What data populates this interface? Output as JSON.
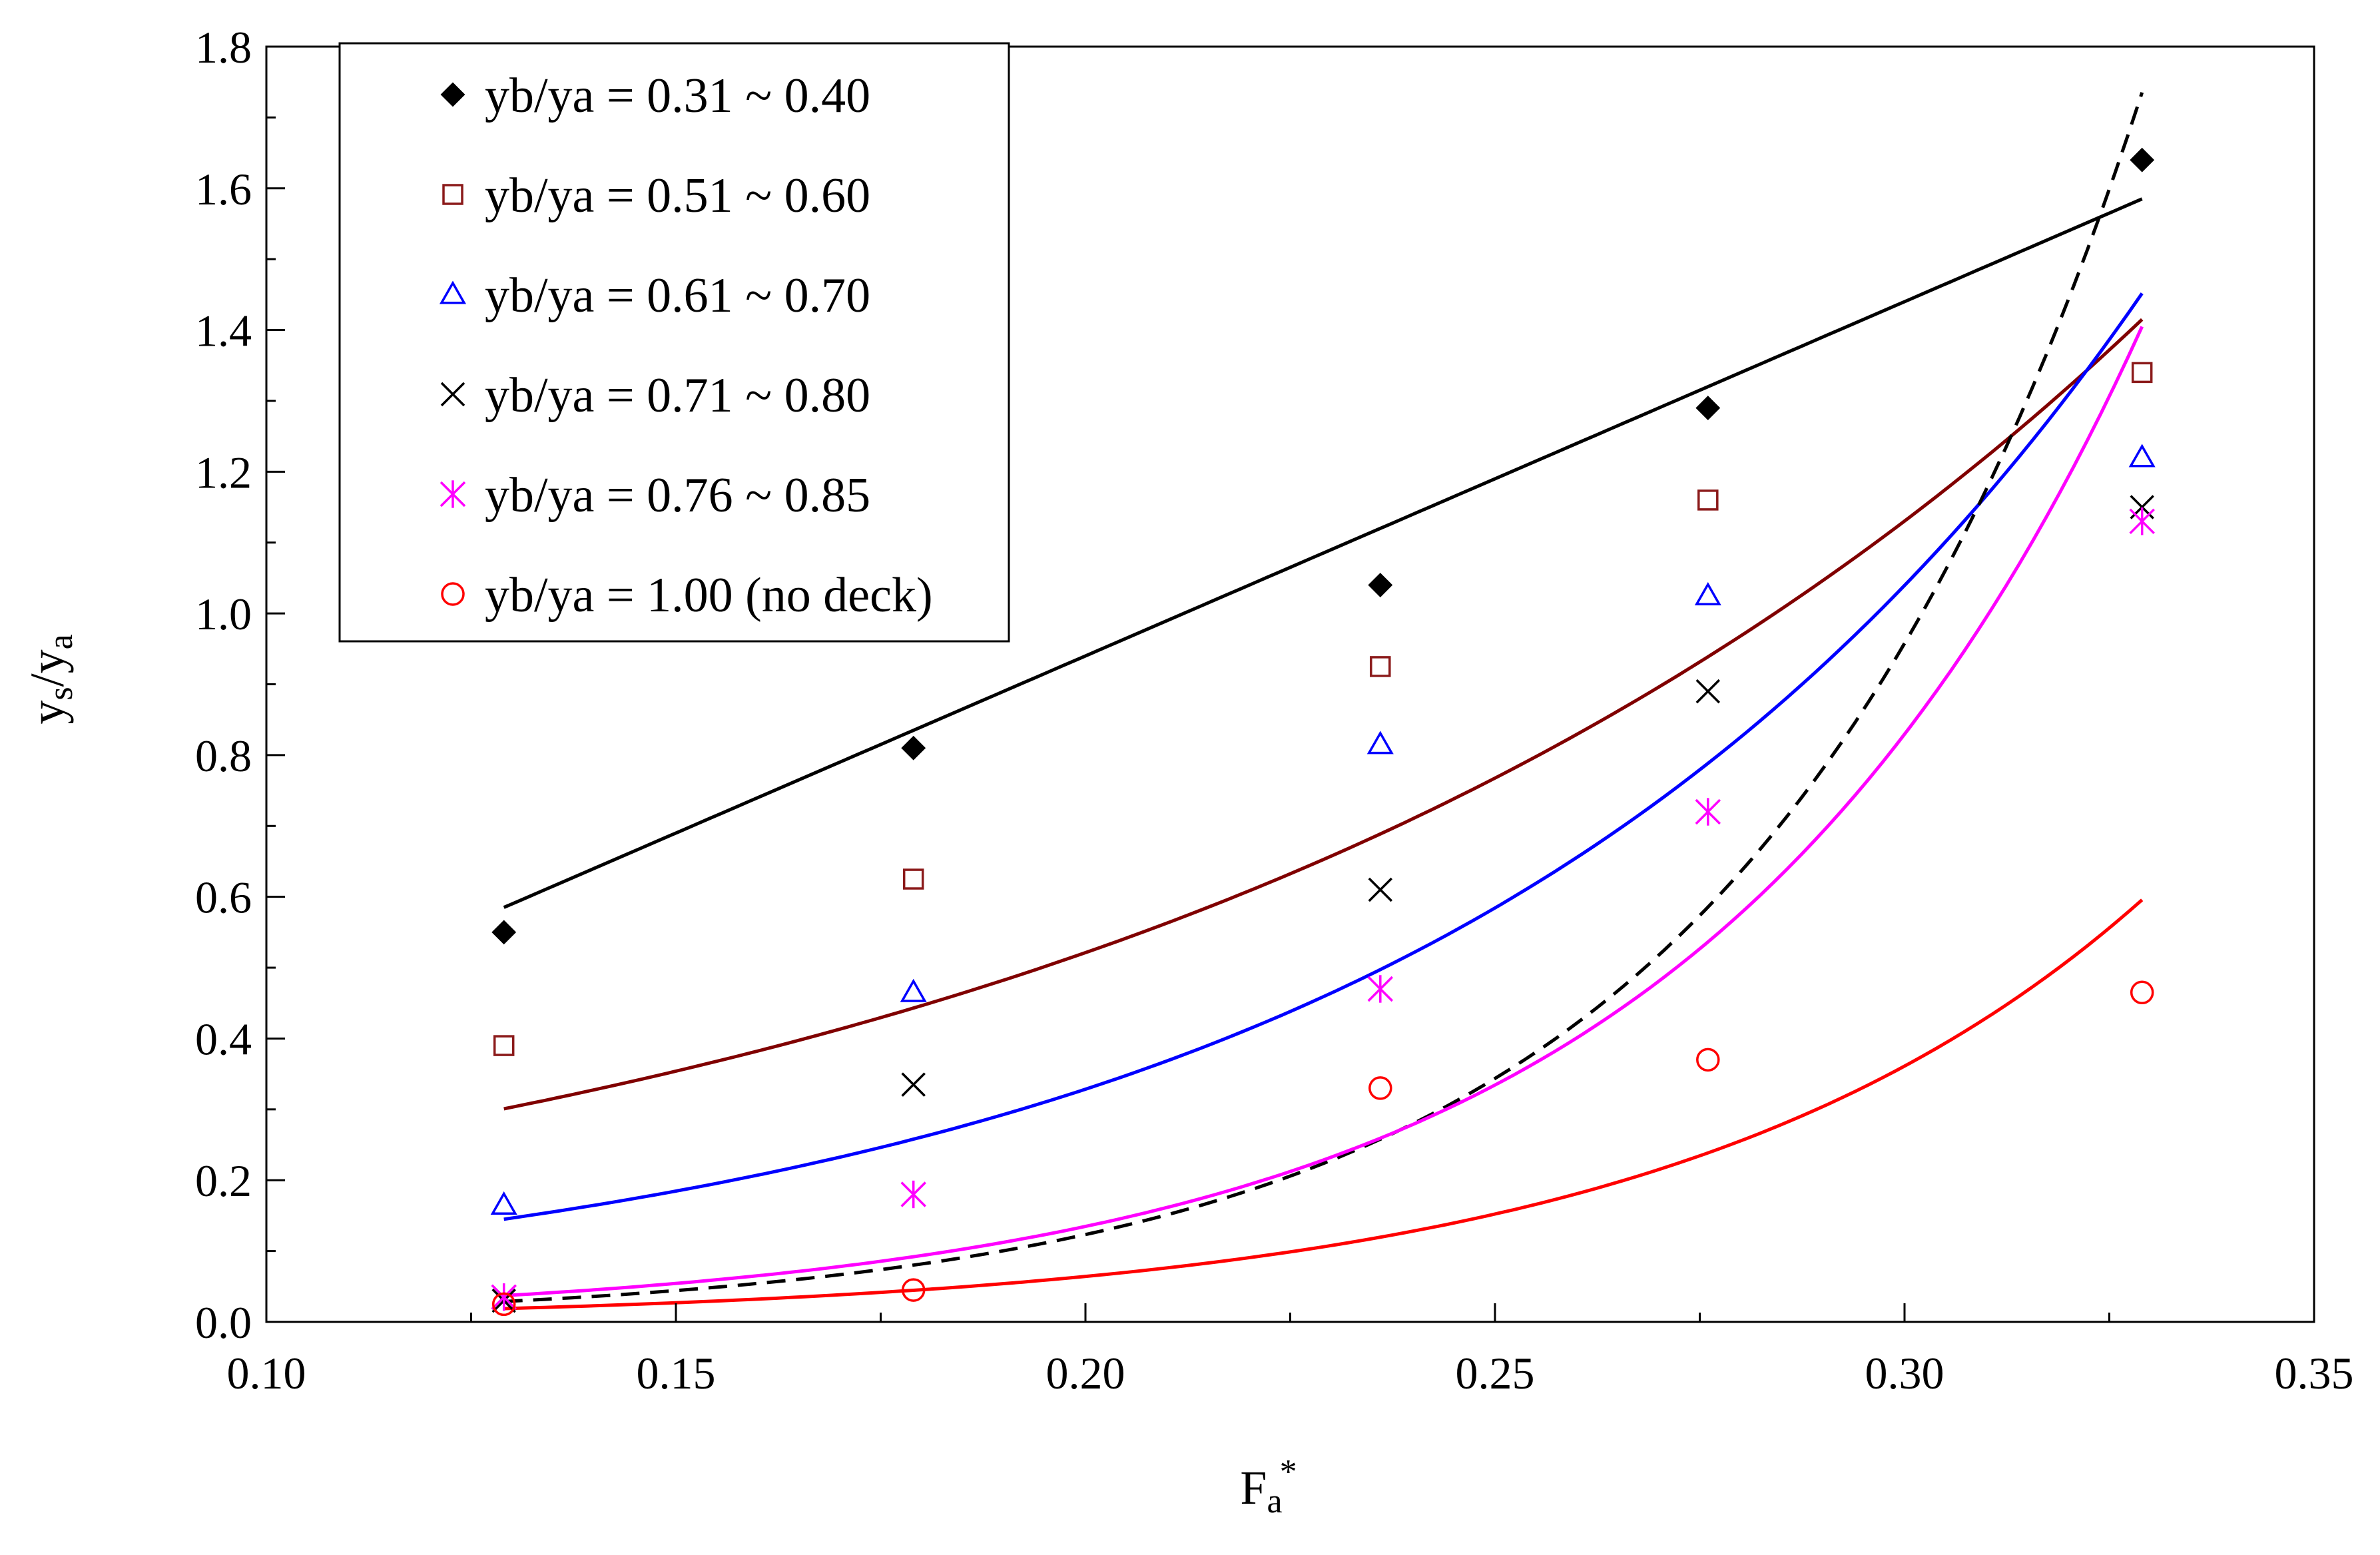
{
  "chart_data": {
    "type": "scatter",
    "title": "",
    "xlabel": {
      "main": "F",
      "sub": "a",
      "sup": "*"
    },
    "ylabel": {
      "y1": "y",
      "s1": "s",
      "slash": "/",
      "y2": "y",
      "s2": "a"
    },
    "xlim": [
      0.1,
      0.35
    ],
    "ylim": [
      0.0,
      1.8
    ],
    "x_ticks": [
      "0.10",
      "0.15",
      "0.20",
      "0.25",
      "0.30",
      "0.35"
    ],
    "y_ticks": [
      "0.0",
      "0.2",
      "0.4",
      "0.6",
      "0.8",
      "1.0",
      "1.2",
      "1.4",
      "1.6",
      "1.8"
    ],
    "grid": false,
    "legend_position": "top-left",
    "series": [
      {
        "name": "yb/ya = 0.31 ~ 0.40",
        "marker": "diamond-filled",
        "color": "#000000",
        "x": [
          0.129,
          0.179,
          0.236,
          0.276,
          0.329
        ],
        "y": [
          0.55,
          0.81,
          1.04,
          1.29,
          1.64
        ],
        "fit": {
          "kind": "linear",
          "a": -0.06,
          "b": 5.0,
          "x_range": [
            0.129,
            0.329
          ],
          "color": "#000000",
          "dash": false
        }
      },
      {
        "name": "yb/ya = 0.51 ~ 0.60",
        "marker": "square-open",
        "color": "#8b1a1a",
        "x": [
          0.129,
          0.179,
          0.236,
          0.276,
          0.329
        ],
        "y": [
          0.39,
          0.625,
          0.925,
          1.16,
          1.34
        ],
        "fit": {
          "kind": "exp",
          "a": 0.1108,
          "b": 7.742,
          "x_range": [
            0.129,
            0.329
          ],
          "color": "#800000",
          "dash": false
        }
      },
      {
        "name": "yb/ya = 0.61 ~ 0.70",
        "marker": "triangle-open",
        "color": "#0000ff",
        "x": [
          0.129,
          0.179,
          0.236,
          0.276,
          0.329
        ],
        "y": [
          0.165,
          0.465,
          0.815,
          1.025,
          1.22
        ],
        "fit": {
          "kind": "exp",
          "a": 0.0328,
          "b": 11.52,
          "x_range": [
            0.129,
            0.329
          ],
          "color": "#0000ff",
          "dash": false
        }
      },
      {
        "name": "yb/ya = 0.71 ~ 0.80",
        "marker": "cross",
        "color": "#000000",
        "x": [
          0.129,
          0.179,
          0.236,
          0.276,
          0.329
        ],
        "y": [
          0.03,
          0.335,
          0.61,
          0.89,
          1.15
        ],
        "fit": {
          "kind": "exp",
          "a": 0.002043,
          "b": 20.5,
          "x_range": [
            0.129,
            0.329
          ],
          "color": "#000000",
          "dash": true
        }
      },
      {
        "name": "yb/ya = 0.76 ~ 0.85",
        "marker": "asterisk",
        "color": "#ff00ff",
        "x": [
          0.129,
          0.179,
          0.236,
          0.276,
          0.329
        ],
        "y": [
          0.035,
          0.18,
          0.47,
          0.72,
          1.13
        ],
        "fit": {
          "kind": "exp",
          "a": 0.00356,
          "b": 18.17,
          "x_range": [
            0.129,
            0.329
          ],
          "color": "#ff00ff",
          "dash": false
        }
      },
      {
        "name": "yb/ya = 1.00 (no deck)",
        "marker": "circle-open",
        "color": "#ff0000",
        "x": [
          0.129,
          0.179,
          0.236,
          0.276,
          0.329
        ],
        "y": [
          0.025,
          0.045,
          0.33,
          0.37,
          0.465
        ],
        "fit": {
          "kind": "exp",
          "a": 0.00203,
          "b": 17.27,
          "x_range": [
            0.129,
            0.329
          ],
          "color": "#ff0000",
          "dash": false
        }
      }
    ]
  }
}
